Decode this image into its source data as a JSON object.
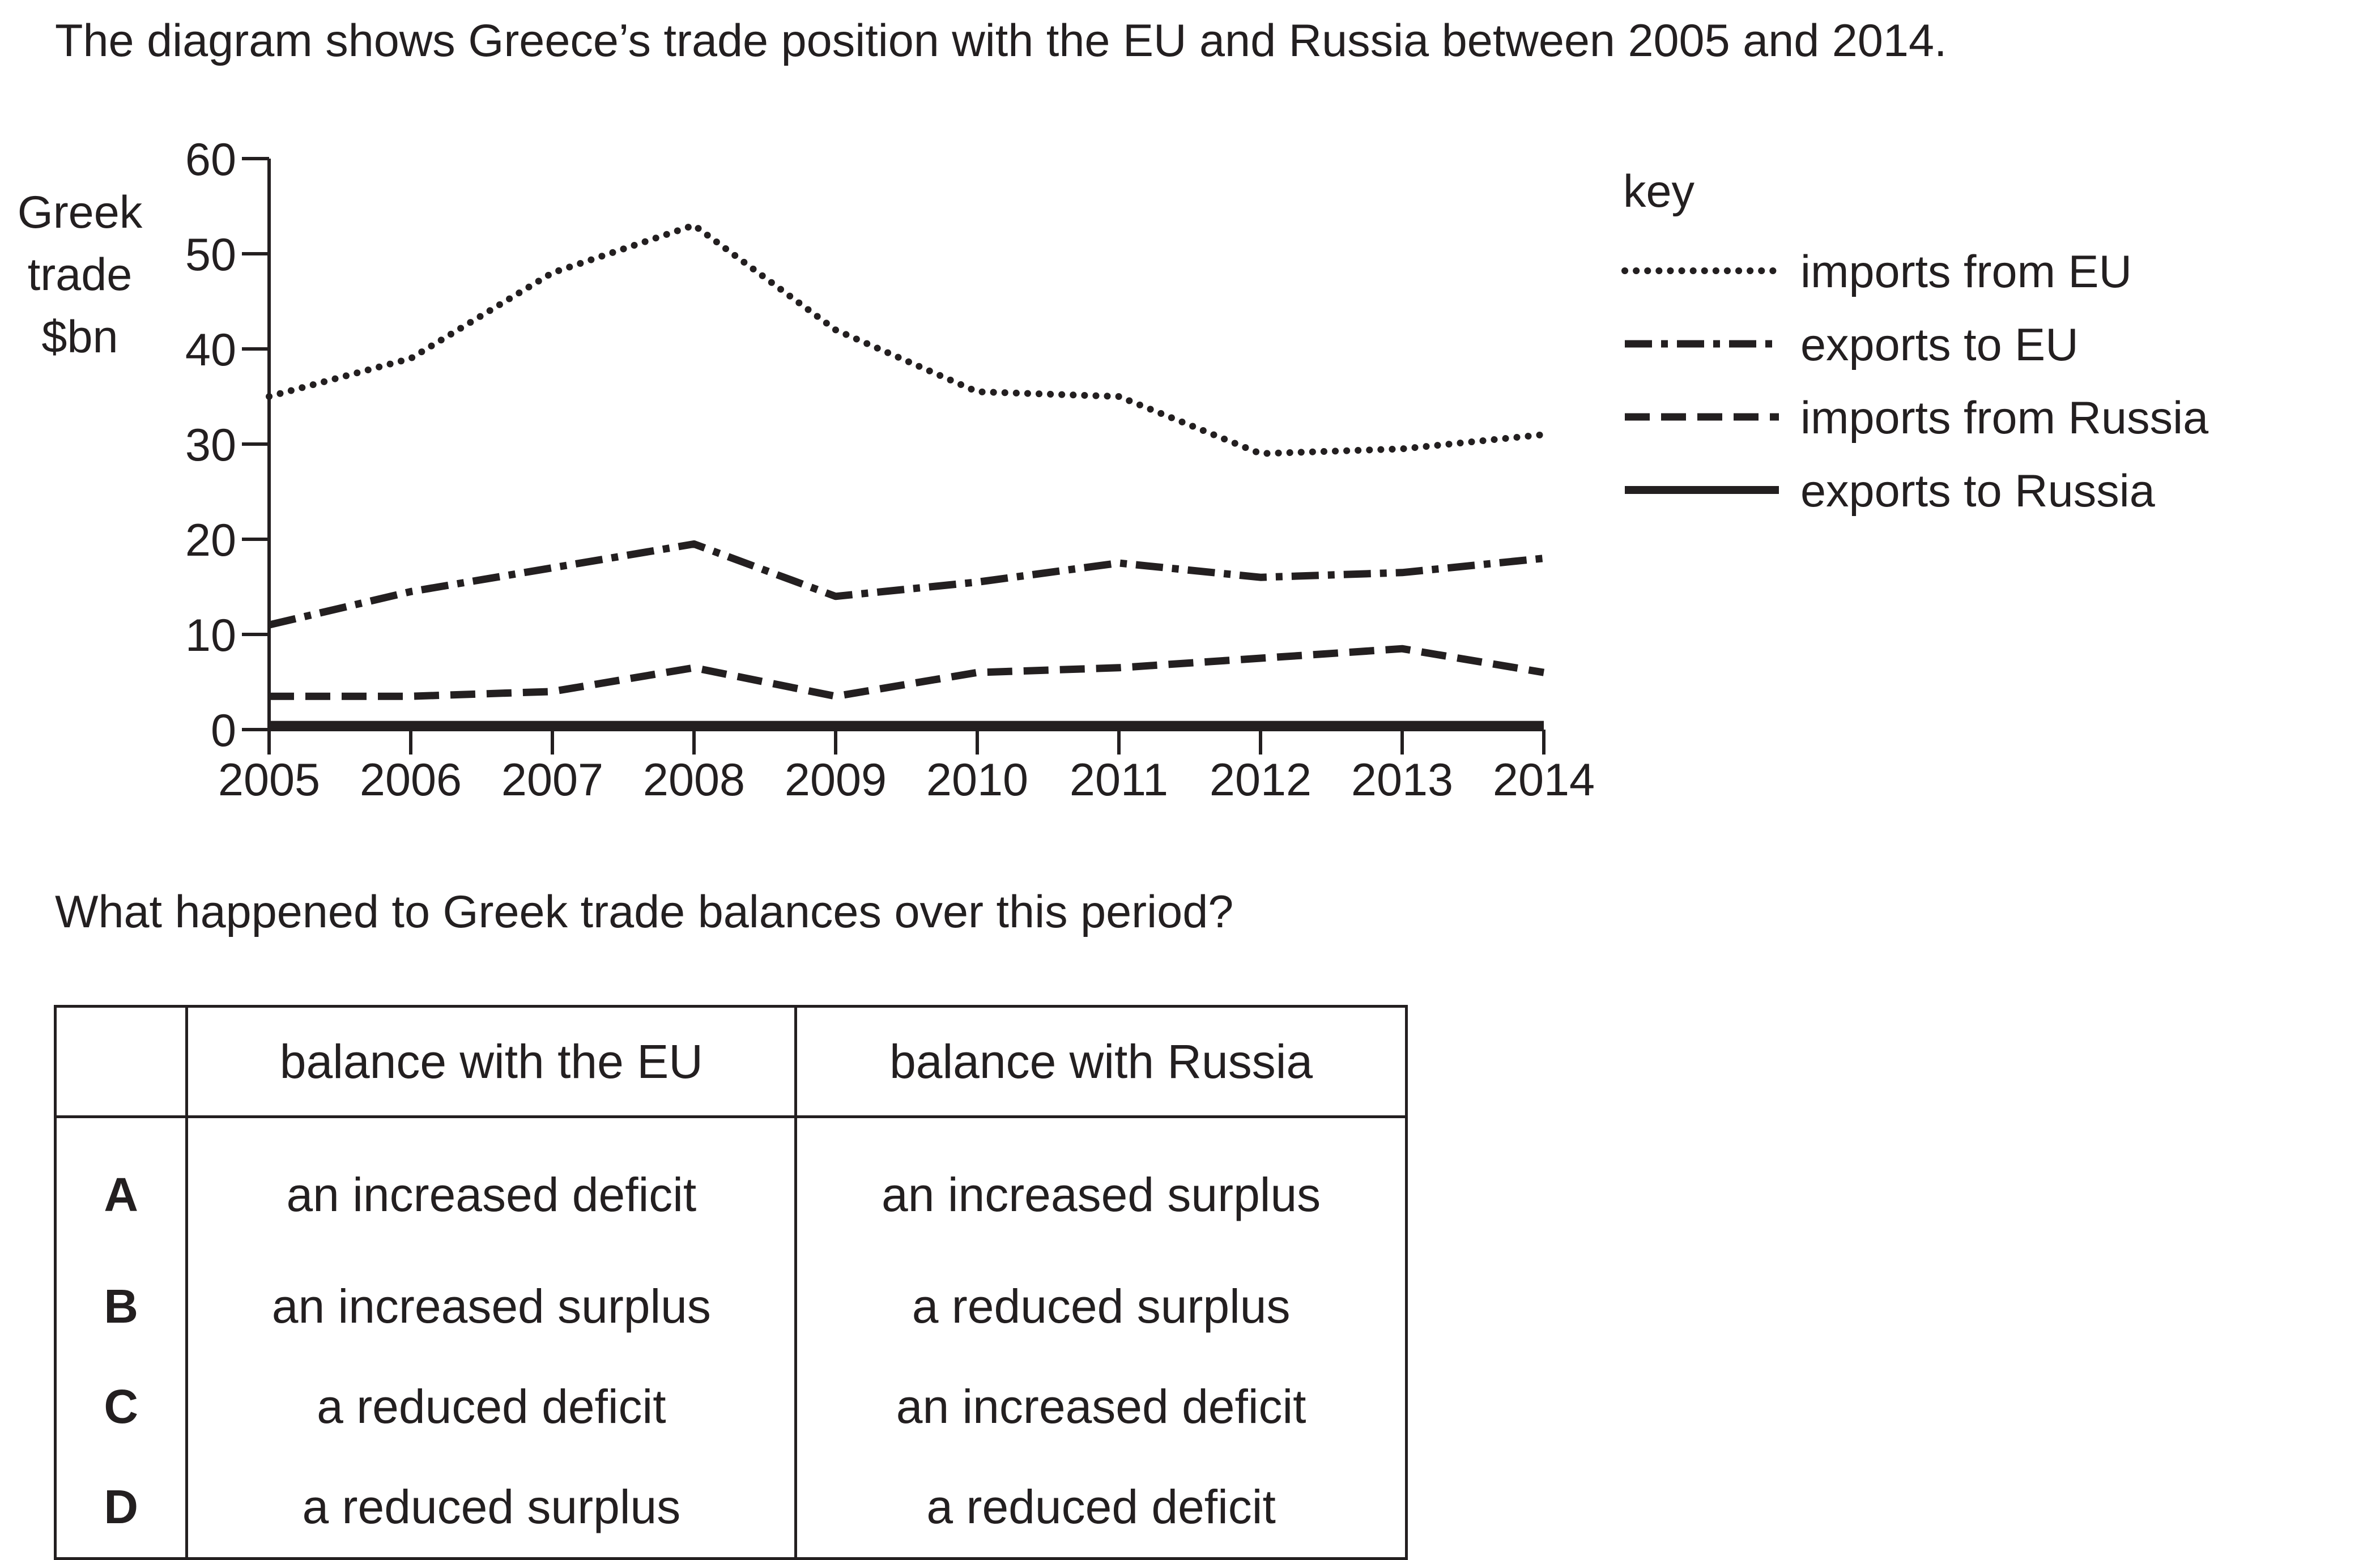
{
  "intro_text": "The diagram shows Greece’s trade position with the EU and Russia between 2005 and 2014.",
  "question_text": "What happened to Greek trade balances over this period?",
  "options_table": {
    "headers": [
      "",
      "balance with the EU",
      "balance with Russia"
    ],
    "rows": [
      {
        "letter": "A",
        "eu": "an increased deficit",
        "russia": "an increased surplus"
      },
      {
        "letter": "B",
        "eu": "an increased surplus",
        "russia": "a reduced surplus"
      },
      {
        "letter": "C",
        "eu": "a reduced deficit",
        "russia": "an increased deficit"
      },
      {
        "letter": "D",
        "eu": "a reduced surplus",
        "russia": "a reduced deficit"
      }
    ]
  },
  "chart_data": {
    "type": "line",
    "title": "",
    "ylabel": [
      "Greek",
      "trade",
      "$bn"
    ],
    "xlabel": "",
    "x": [
      2005,
      2006,
      2007,
      2008,
      2009,
      2010,
      2011,
      2012,
      2013,
      2014
    ],
    "ylim": [
      0,
      60
    ],
    "yticks": [
      0,
      10,
      20,
      30,
      40,
      50,
      60
    ],
    "grid": false,
    "legend_title": "key",
    "legend_position": "top-right",
    "series": [
      {
        "name": "imports from EU",
        "style": "dotted",
        "values": [
          35,
          39,
          48,
          53,
          42,
          35.5,
          35,
          29,
          29.5,
          31
        ]
      },
      {
        "name": "exports to EU",
        "style": "dash-dot",
        "values": [
          11,
          14.5,
          17,
          19.5,
          14,
          15.5,
          17.5,
          16,
          16.5,
          18
        ]
      },
      {
        "name": "imports from Russia",
        "style": "dashed",
        "values": [
          3.5,
          3.5,
          4,
          6.5,
          3.5,
          6,
          6.5,
          7.5,
          8.5,
          6
        ]
      },
      {
        "name": "exports to Russia",
        "style": "solid",
        "values": [
          0.5,
          0.5,
          0.5,
          0.5,
          0.5,
          0.5,
          0.5,
          0.5,
          0.5,
          0.5
        ]
      }
    ],
    "colors": {
      "ink": "#231f20"
    }
  }
}
